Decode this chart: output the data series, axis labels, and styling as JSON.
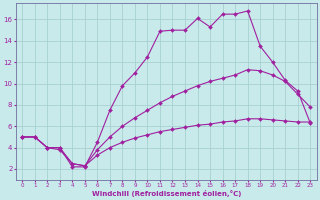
{
  "xlabel": "Windchill (Refroidissement éolien,°C)",
  "bg_color": "#c8eaea",
  "grid_color": "#a8d0d0",
  "line_color": "#a020a0",
  "spine_color": "#7070a0",
  "line1_x": [
    0,
    1,
    2,
    3,
    4,
    5,
    6,
    7,
    8,
    9,
    10,
    11,
    12,
    13,
    14,
    15,
    16,
    17,
    18,
    19,
    20,
    21,
    22,
    23
  ],
  "line1_y": [
    5.0,
    5.0,
    4.0,
    4.0,
    2.2,
    2.2,
    4.5,
    7.5,
    9.8,
    11.0,
    12.5,
    14.9,
    15.0,
    15.0,
    16.1,
    15.3,
    16.5,
    16.5,
    16.8,
    13.5,
    12.0,
    10.3,
    9.3,
    6.3
  ],
  "line2_x": [
    0,
    1,
    2,
    3,
    4,
    5,
    6,
    7,
    8,
    9,
    10,
    11,
    12,
    13,
    14,
    15,
    16,
    17,
    18,
    19,
    20,
    21,
    22,
    23
  ],
  "line2_y": [
    5.0,
    5.0,
    4.0,
    3.8,
    2.5,
    2.3,
    3.8,
    5.0,
    6.0,
    6.8,
    7.5,
    8.2,
    8.8,
    9.3,
    9.8,
    10.2,
    10.5,
    10.8,
    11.3,
    11.2,
    10.8,
    10.2,
    9.0,
    7.8
  ],
  "line3_x": [
    0,
    1,
    2,
    3,
    4,
    5,
    6,
    7,
    8,
    9,
    10,
    11,
    12,
    13,
    14,
    15,
    16,
    17,
    18,
    19,
    20,
    21,
    22,
    23
  ],
  "line3_y": [
    5.0,
    5.0,
    4.0,
    4.0,
    2.5,
    2.3,
    3.3,
    4.0,
    4.5,
    4.9,
    5.2,
    5.5,
    5.7,
    5.9,
    6.1,
    6.2,
    6.4,
    6.5,
    6.7,
    6.7,
    6.6,
    6.5,
    6.4,
    6.4
  ],
  "xlim": [
    -0.5,
    23.5
  ],
  "ylim": [
    1.0,
    17.5
  ],
  "yticks": [
    2,
    4,
    6,
    8,
    10,
    12,
    14,
    16
  ],
  "xticks": [
    0,
    1,
    2,
    3,
    4,
    5,
    6,
    7,
    8,
    9,
    10,
    11,
    12,
    13,
    14,
    15,
    16,
    17,
    18,
    19,
    20,
    21,
    22,
    23
  ]
}
